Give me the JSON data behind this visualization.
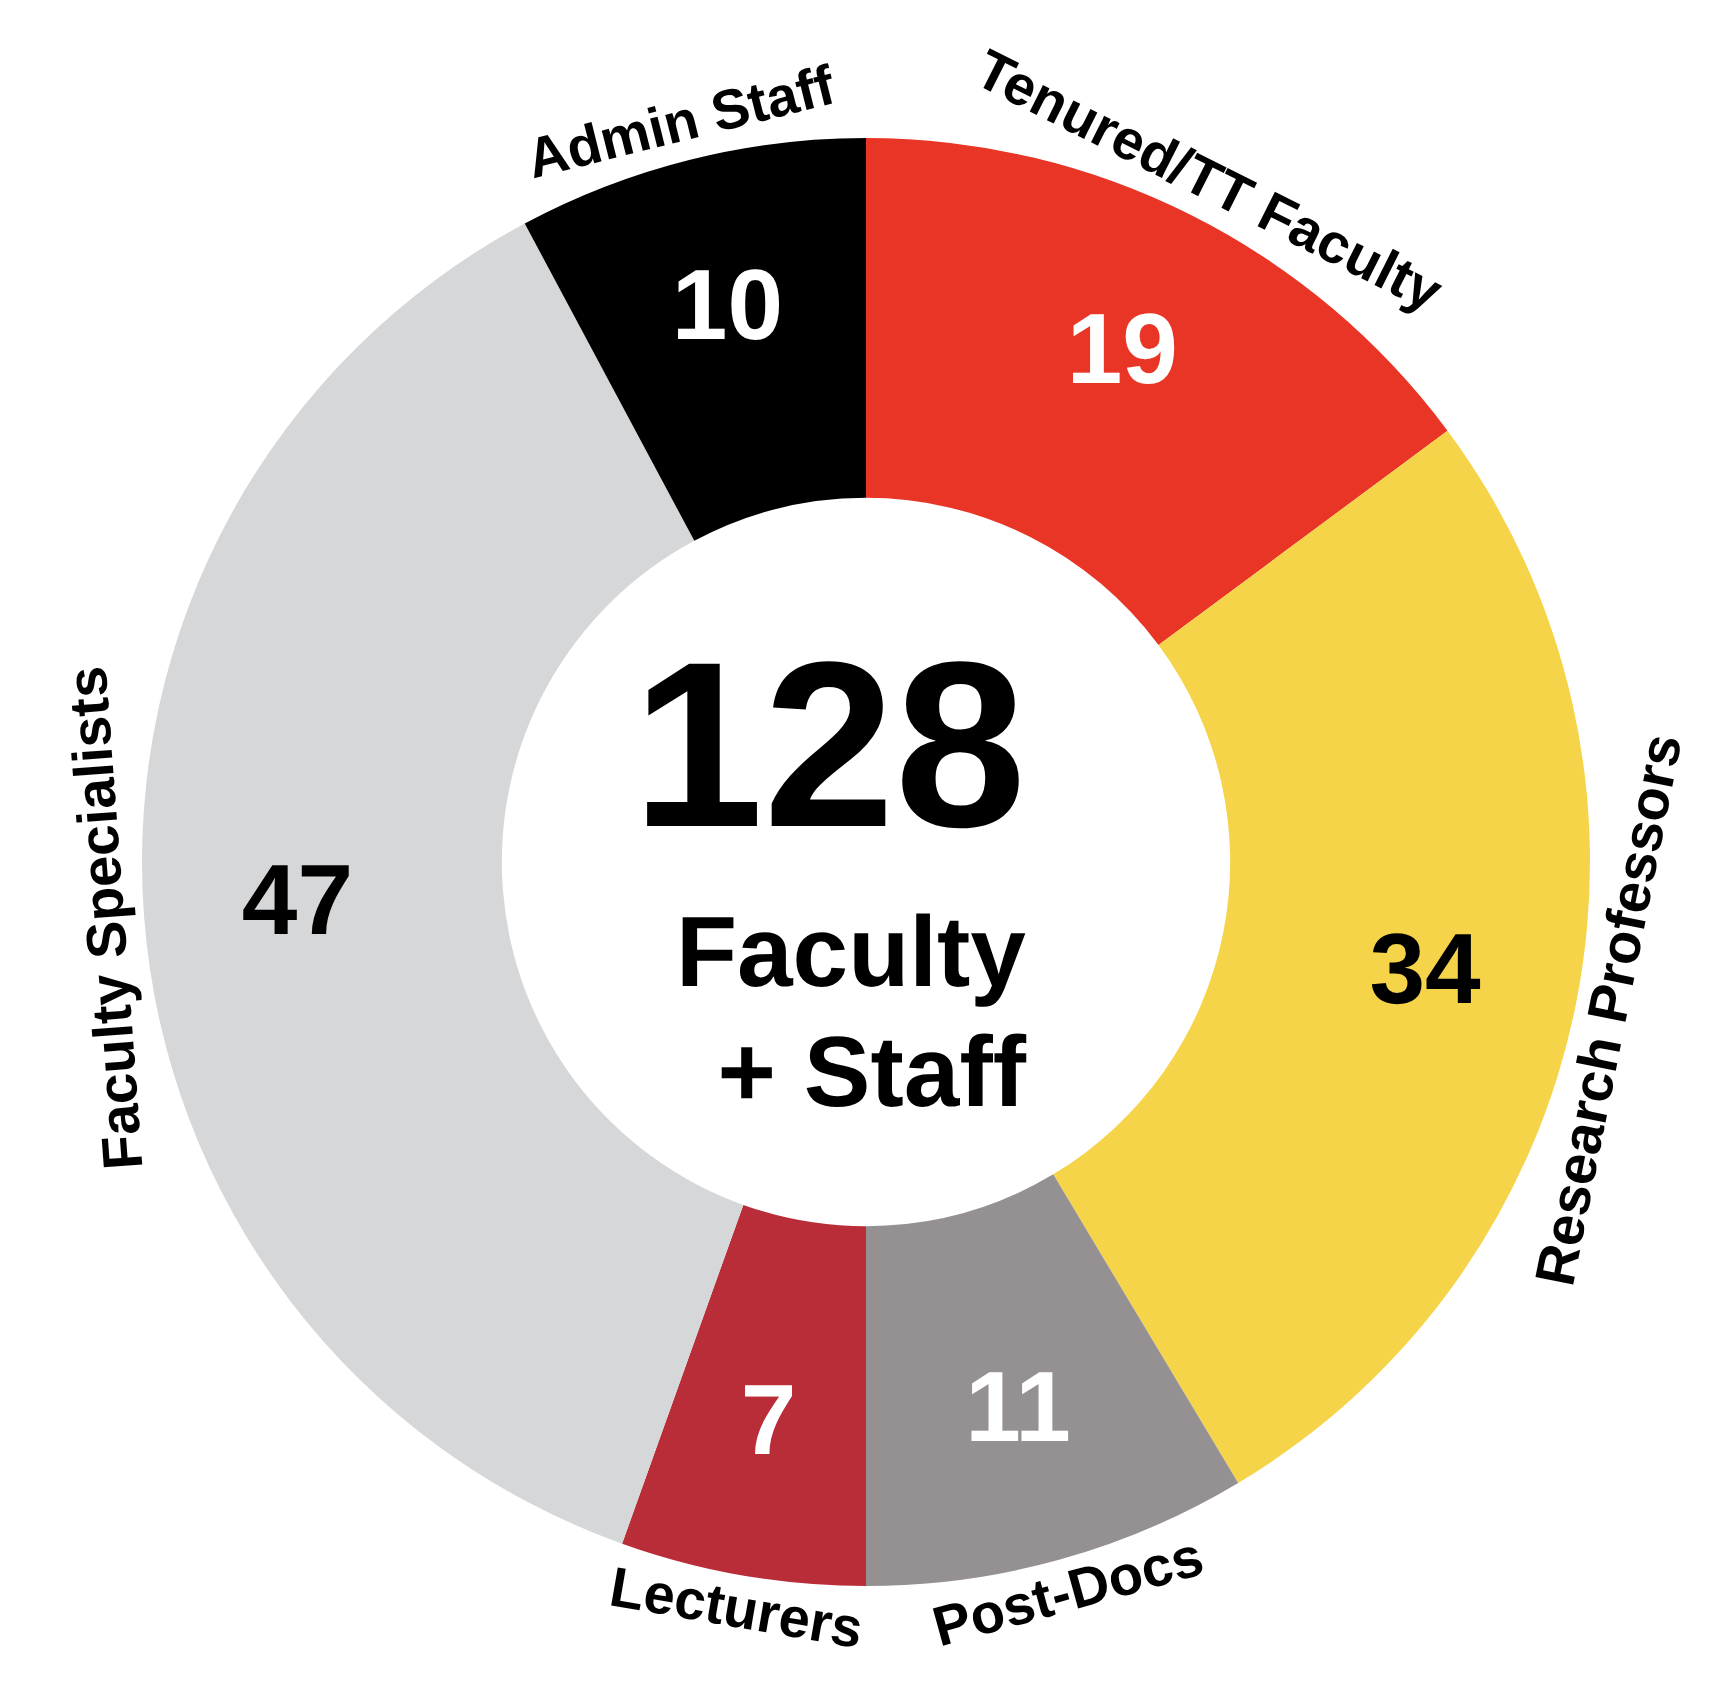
{
  "chart_data": {
    "type": "donut",
    "categories": [
      "Tenured/TT Faculty",
      "Research Professors",
      "Post-Docs",
      "Lecturers",
      "Faculty Specialists",
      "Admin Staff"
    ],
    "values": [
      19,
      34,
      11,
      7,
      47,
      10
    ],
    "colors": [
      "#e93526",
      "#f6d44a",
      "#959192",
      "#b92d39",
      "#d6d7d9",
      "#000000"
    ],
    "data_labels": true,
    "annotations": [
      "128",
      "Faculty",
      "+ Staff"
    ]
  }
}
